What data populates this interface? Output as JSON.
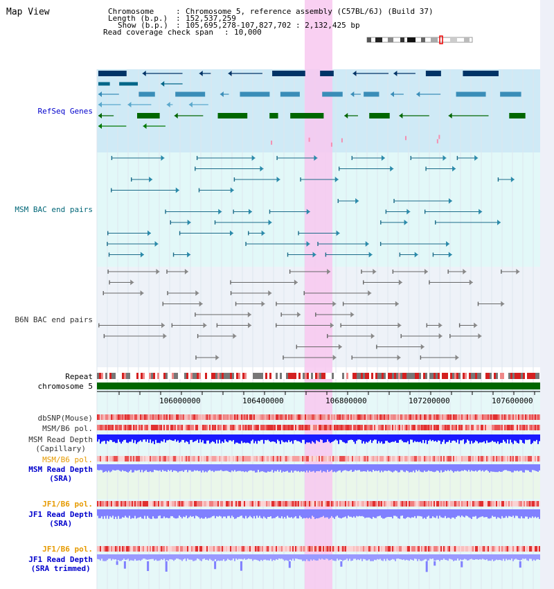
{
  "title": "Map View",
  "info": {
    "line1_key": "Chromosome",
    "line1_val": "Chromosome 5, reference assembly (C57BL/6J) (Build 37)",
    "line2_key": "Length (b.p.)",
    "line2_val": "152,537,259",
    "line3_key": "Show (b.p.)",
    "line3_val": "105,695,278-107,827,702 : 2,132,425 bp",
    "line4_key": "Read coverage check span",
    "line4_val": "10,000"
  },
  "tracks": {
    "refseq": "RefSeq Genes",
    "msm_bac": "MSM BAC end pairs",
    "b6n_bac": "B6N BAC end pairs",
    "repeat": "Repeat",
    "chromosome": "chromosome 5",
    "dbsnp": "dbSNP(Mouse)",
    "msm_b6_pol_1": "MSM/B6 pol.",
    "msm_depth_cap_1": "MSM Read Depth",
    "msm_depth_cap_2": "(Capillary)",
    "msm_b6_pol_2": "MSM/B6 pol.",
    "msm_depth_sra_1": "MSM Read Depth",
    "msm_depth_sra_2": "(SRA)",
    "jf1_pol_1": "JF1/B6 pol.",
    "jf1_depth_sra_1": "JF1 Read Depth",
    "jf1_depth_sra_2": "(SRA)",
    "jf1_pol_2": "JF1/B6 pol.",
    "jf1_depth_trim_1": "JF1 Read Depth",
    "jf1_depth_trim_2": "(SRA trimmed)"
  },
  "axis_ticks": [
    "106000000",
    "106400000",
    "106800000",
    "107200000",
    "107600000"
  ],
  "colors": {
    "label_blue": "#0000cc",
    "label_teal": "#006677",
    "label_gray": "#333333",
    "label_orange": "#e69a00",
    "highlight": "#f8c8f0",
    "refseq_bg": "#cfeaf6",
    "msm_bg": "#e2f8f8",
    "b6n_bg": "#eef2f8",
    "chrom_green": "#006600",
    "depth_blue": "#1a1aff",
    "depth_light": "#8080ff"
  }
}
